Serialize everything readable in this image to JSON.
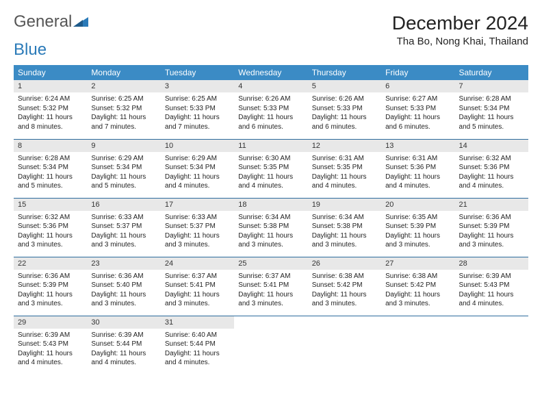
{
  "brand": {
    "name_part1": "General",
    "name_part2": "Blue"
  },
  "title": "December 2024",
  "location": "Tha Bo, Nong Khai, Thailand",
  "colors": {
    "header_bg": "#3b8bc5",
    "daynum_bg": "#e8e8e8",
    "row_border": "#2a6a9c",
    "logo_blue": "#2a7ab8"
  },
  "weekdays": [
    "Sunday",
    "Monday",
    "Tuesday",
    "Wednesday",
    "Thursday",
    "Friday",
    "Saturday"
  ],
  "days": [
    {
      "n": "1",
      "sr": "6:24 AM",
      "ss": "5:32 PM",
      "dl": "11 hours and 8 minutes."
    },
    {
      "n": "2",
      "sr": "6:25 AM",
      "ss": "5:32 PM",
      "dl": "11 hours and 7 minutes."
    },
    {
      "n": "3",
      "sr": "6:25 AM",
      "ss": "5:33 PM",
      "dl": "11 hours and 7 minutes."
    },
    {
      "n": "4",
      "sr": "6:26 AM",
      "ss": "5:33 PM",
      "dl": "11 hours and 6 minutes."
    },
    {
      "n": "5",
      "sr": "6:26 AM",
      "ss": "5:33 PM",
      "dl": "11 hours and 6 minutes."
    },
    {
      "n": "6",
      "sr": "6:27 AM",
      "ss": "5:33 PM",
      "dl": "11 hours and 6 minutes."
    },
    {
      "n": "7",
      "sr": "6:28 AM",
      "ss": "5:34 PM",
      "dl": "11 hours and 5 minutes."
    },
    {
      "n": "8",
      "sr": "6:28 AM",
      "ss": "5:34 PM",
      "dl": "11 hours and 5 minutes."
    },
    {
      "n": "9",
      "sr": "6:29 AM",
      "ss": "5:34 PM",
      "dl": "11 hours and 5 minutes."
    },
    {
      "n": "10",
      "sr": "6:29 AM",
      "ss": "5:34 PM",
      "dl": "11 hours and 4 minutes."
    },
    {
      "n": "11",
      "sr": "6:30 AM",
      "ss": "5:35 PM",
      "dl": "11 hours and 4 minutes."
    },
    {
      "n": "12",
      "sr": "6:31 AM",
      "ss": "5:35 PM",
      "dl": "11 hours and 4 minutes."
    },
    {
      "n": "13",
      "sr": "6:31 AM",
      "ss": "5:36 PM",
      "dl": "11 hours and 4 minutes."
    },
    {
      "n": "14",
      "sr": "6:32 AM",
      "ss": "5:36 PM",
      "dl": "11 hours and 4 minutes."
    },
    {
      "n": "15",
      "sr": "6:32 AM",
      "ss": "5:36 PM",
      "dl": "11 hours and 3 minutes."
    },
    {
      "n": "16",
      "sr": "6:33 AM",
      "ss": "5:37 PM",
      "dl": "11 hours and 3 minutes."
    },
    {
      "n": "17",
      "sr": "6:33 AM",
      "ss": "5:37 PM",
      "dl": "11 hours and 3 minutes."
    },
    {
      "n": "18",
      "sr": "6:34 AM",
      "ss": "5:38 PM",
      "dl": "11 hours and 3 minutes."
    },
    {
      "n": "19",
      "sr": "6:34 AM",
      "ss": "5:38 PM",
      "dl": "11 hours and 3 minutes."
    },
    {
      "n": "20",
      "sr": "6:35 AM",
      "ss": "5:39 PM",
      "dl": "11 hours and 3 minutes."
    },
    {
      "n": "21",
      "sr": "6:36 AM",
      "ss": "5:39 PM",
      "dl": "11 hours and 3 minutes."
    },
    {
      "n": "22",
      "sr": "6:36 AM",
      "ss": "5:39 PM",
      "dl": "11 hours and 3 minutes."
    },
    {
      "n": "23",
      "sr": "6:36 AM",
      "ss": "5:40 PM",
      "dl": "11 hours and 3 minutes."
    },
    {
      "n": "24",
      "sr": "6:37 AM",
      "ss": "5:41 PM",
      "dl": "11 hours and 3 minutes."
    },
    {
      "n": "25",
      "sr": "6:37 AM",
      "ss": "5:41 PM",
      "dl": "11 hours and 3 minutes."
    },
    {
      "n": "26",
      "sr": "6:38 AM",
      "ss": "5:42 PM",
      "dl": "11 hours and 3 minutes."
    },
    {
      "n": "27",
      "sr": "6:38 AM",
      "ss": "5:42 PM",
      "dl": "11 hours and 3 minutes."
    },
    {
      "n": "28",
      "sr": "6:39 AM",
      "ss": "5:43 PM",
      "dl": "11 hours and 4 minutes."
    },
    {
      "n": "29",
      "sr": "6:39 AM",
      "ss": "5:43 PM",
      "dl": "11 hours and 4 minutes."
    },
    {
      "n": "30",
      "sr": "6:39 AM",
      "ss": "5:44 PM",
      "dl": "11 hours and 4 minutes."
    },
    {
      "n": "31",
      "sr": "6:40 AM",
      "ss": "5:44 PM",
      "dl": "11 hours and 4 minutes."
    }
  ],
  "labels": {
    "sunrise": "Sunrise:",
    "sunset": "Sunset:",
    "daylight": "Daylight:"
  }
}
